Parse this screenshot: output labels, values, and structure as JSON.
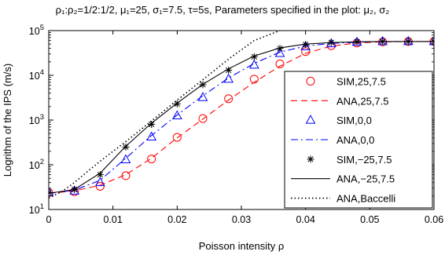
{
  "chart_data": {
    "type": "line",
    "title": "ρ₁:ρ₂=1/2:1/2, μ₁=25, σ₁=7.5, τ=5s, Parameters specified in the plot: μ₂, σ₂",
    "xlabel": "Poisson intensity ρ",
    "ylabel": "Logrithm of the IPS (m/s)",
    "xlim": [
      0,
      0.06
    ],
    "ylim": [
      10,
      100000
    ],
    "y_scale": "log",
    "grid": false,
    "legend_position": "right",
    "x_ticks": [
      0,
      0.01,
      0.02,
      0.03,
      0.04,
      0.05,
      0.06
    ],
    "x_tick_labels": [
      "0",
      "0.01",
      "0.02",
      "0.03",
      "0.04",
      "0.05",
      "0.06"
    ],
    "y_ticks": [
      10,
      100,
      1000,
      10000,
      100000
    ],
    "y_tick_labels": [
      {
        "base": "10",
        "exp": "1"
      },
      {
        "base": "10",
        "exp": "2"
      },
      {
        "base": "10",
        "exp": "3"
      },
      {
        "base": "10",
        "exp": "4"
      },
      {
        "base": "10",
        "exp": "5"
      }
    ],
    "series": [
      {
        "name": "SIM,25,7.5",
        "style": "marker",
        "marker": "circle",
        "color": "#ff0000",
        "x": [
          0,
          0.004,
          0.008,
          0.012,
          0.016,
          0.02,
          0.024,
          0.028,
          0.032,
          0.036,
          0.04,
          0.044,
          0.048,
          0.052,
          0.056,
          0.06
        ],
        "y": [
          24,
          25,
          33,
          57,
          135,
          410,
          1080,
          3000,
          8200,
          18000,
          34000,
          46000,
          53000,
          56000,
          57000,
          57000
        ]
      },
      {
        "name": "ANA,25,7.5",
        "style": "line",
        "dash": "dashed",
        "color": "#ff0000",
        "x": [
          0,
          0.004,
          0.008,
          0.012,
          0.016,
          0.02,
          0.024,
          0.028,
          0.032,
          0.036,
          0.04,
          0.044,
          0.048,
          0.052,
          0.056,
          0.06
        ],
        "y": [
          23,
          26,
          35,
          60,
          140,
          400,
          1050,
          2800,
          7000,
          16000,
          31000,
          45000,
          53000,
          56000,
          57000,
          57000
        ]
      },
      {
        "name": "SIM,0,0",
        "style": "marker",
        "marker": "triangle",
        "color": "#0000ff",
        "x": [
          0,
          0.004,
          0.008,
          0.012,
          0.016,
          0.02,
          0.024,
          0.028,
          0.032,
          0.036,
          0.04,
          0.044,
          0.048,
          0.052,
          0.056,
          0.06
        ],
        "y": [
          24,
          26,
          40,
          130,
          420,
          1250,
          3200,
          8200,
          17000,
          31000,
          44000,
          51000,
          55000,
          57000,
          57000,
          57000
        ]
      },
      {
        "name": "ANA,0,0",
        "style": "line",
        "dash": "dashdot",
        "color": "#0000ff",
        "x": [
          0,
          0.004,
          0.008,
          0.012,
          0.016,
          0.02,
          0.024,
          0.028,
          0.032,
          0.036,
          0.04,
          0.044,
          0.048,
          0.052,
          0.056,
          0.06
        ],
        "y": [
          23,
          27,
          45,
          140,
          450,
          1300,
          3500,
          8700,
          18500,
          33000,
          45000,
          52000,
          55000,
          57000,
          57000,
          57000
        ]
      },
      {
        "name": "SIM,−25,7.5",
        "style": "marker",
        "marker": "asterisk",
        "color": "#000000",
        "x": [
          0,
          0.004,
          0.008,
          0.012,
          0.016,
          0.02,
          0.024,
          0.028,
          0.032,
          0.036,
          0.04,
          0.044,
          0.048,
          0.052,
          0.056,
          0.06
        ],
        "y": [
          24,
          28,
          60,
          250,
          800,
          2300,
          6200,
          13000,
          26000,
          40000,
          49000,
          54000,
          56000,
          57000,
          57000,
          57000
        ]
      },
      {
        "name": "ANA,−25,7.5",
        "style": "line",
        "dash": "solid",
        "color": "#000000",
        "x": [
          0,
          0.004,
          0.008,
          0.012,
          0.016,
          0.02,
          0.024,
          0.028,
          0.032,
          0.036,
          0.04,
          0.044,
          0.048,
          0.052,
          0.056,
          0.06
        ],
        "y": [
          23,
          28,
          65,
          260,
          850,
          2400,
          6300,
          14000,
          27000,
          41000,
          50000,
          54000,
          56000,
          57000,
          57000,
          57000
        ]
      },
      {
        "name": "ANA,Baccelli",
        "style": "line",
        "dash": "dotted",
        "color": "#000000",
        "x": [
          0,
          0.002,
          0.004,
          0.006,
          0.008,
          0.012,
          0.016,
          0.02,
          0.024,
          0.028,
          0.032,
          0.036
        ],
        "y": [
          18,
          25,
          40,
          70,
          120,
          330,
          950,
          2800,
          8000,
          23000,
          60000,
          100000
        ]
      }
    ]
  }
}
